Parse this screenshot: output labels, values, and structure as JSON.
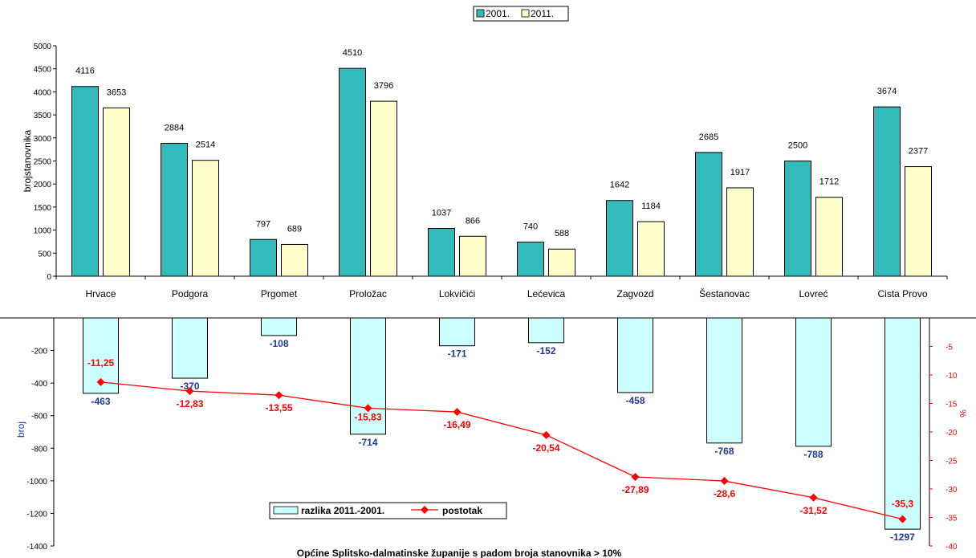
{
  "legend_top": {
    "items": [
      {
        "label": "2001.",
        "color": "#33BBBB"
      },
      {
        "label": "2011.",
        "color": "#FFFFCC"
      }
    ]
  },
  "legend_bottom": {
    "items": [
      {
        "label": "razlika 2011.-2001.",
        "color": "#CCFFFF"
      },
      {
        "label": "postotak",
        "color": "#FF0000"
      }
    ]
  },
  "footer_title": "Općine Splitsko-dalmatinske županije s padom broja stanovnika > 10%",
  "colors": {
    "bar_2001": "#33BBBB",
    "bar_2011": "#FFFFCC",
    "bar_diff": "#CCFFFF",
    "line_pct": "#FF0000",
    "diff_label": "#1F3A93",
    "pct_label": "#FF0000"
  },
  "chart_data": [
    {
      "type": "bar",
      "ylabel": "brojstanovnika",
      "ylim": [
        0,
        5000
      ],
      "yticks": [
        0,
        500,
        1000,
        1500,
        2000,
        2500,
        3000,
        3500,
        4000,
        4500,
        5000
      ],
      "categories": [
        "Hrvace",
        "Podgora",
        "Prgomet",
        "Proložac",
        "Lokvičići",
        "Lećevica",
        "Zagvozd",
        "Šestanovac",
        "Lovreć",
        "Cista Provo"
      ],
      "series": [
        {
          "name": "2001.",
          "values": [
            4116,
            2884,
            797,
            4510,
            1037,
            740,
            1642,
            2685,
            2500,
            3674
          ]
        },
        {
          "name": "2011.",
          "values": [
            3653,
            2514,
            689,
            3796,
            866,
            588,
            1184,
            1917,
            1712,
            2377
          ]
        }
      ],
      "legend": "top-center",
      "grid": false
    },
    {
      "type": "bar",
      "ylabel": "broj",
      "y2label": "%",
      "ylim": [
        -1400,
        0
      ],
      "y2lim": [
        -40,
        0
      ],
      "yticks": [
        -200,
        -400,
        -600,
        -800,
        -1000,
        -1200,
        -1400
      ],
      "y2ticks": [
        -5,
        -10,
        -15,
        -20,
        -25,
        -30,
        -35,
        -40
      ],
      "categories": [
        "Hrvace",
        "Podgora",
        "Prgomet",
        "Proložac",
        "Lokvičići",
        "Lećevica",
        "Zagvozd",
        "Šestanovac",
        "Lovreć",
        "Cista Provo"
      ],
      "series": [
        {
          "name": "razlika 2011.-2001.",
          "type": "bar",
          "axis": "left",
          "values": [
            -463,
            -370,
            -108,
            -714,
            -171,
            -152,
            -458,
            -768,
            -788,
            -1297
          ]
        },
        {
          "name": "postotak",
          "type": "line",
          "axis": "right",
          "values": [
            -11.25,
            -12.83,
            -13.55,
            -15.83,
            -16.49,
            -20.54,
            -27.89,
            -28.6,
            -31.52,
            -35.3
          ]
        }
      ],
      "diff_labels": [
        "-463",
        "-370",
        "-108",
        "-714",
        "-171",
        "-152",
        "-458",
        "-768",
        "-788",
        "-1297"
      ],
      "pct_labels": [
        "-11,25",
        "-12,83",
        "-13,55",
        "-15,83",
        "-16,49",
        "-20,54",
        "-27,89",
        "-28,6",
        "-31,52",
        "-35,3"
      ],
      "legend": "bottom-left",
      "grid": false
    }
  ]
}
